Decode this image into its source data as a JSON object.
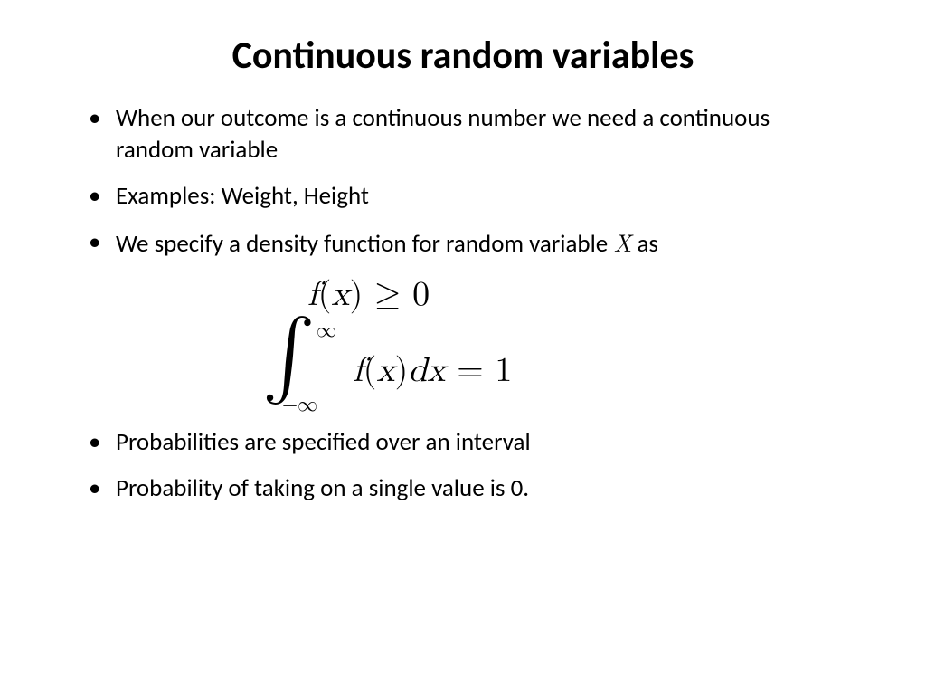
{
  "title": "Continuous random variables",
  "bullets": {
    "b1": "When our outcome is a continuous number we need a continuous random variable",
    "b2": "Examples: Weight, Height",
    "b3_pre": "We specify a density function for random variable ",
    "b3_var": "X",
    "b3_post": " as",
    "b4": "Probabilities are specified over an interval",
    "b5": "Probability of taking on a single value is 0."
  },
  "math": {
    "eq1_f": "f",
    "eq1_lpar": "(",
    "eq1_x": "x",
    "eq1_rpar": ")",
    "eq1_geq": " ≥ ",
    "eq1_zero": "0",
    "integral": "∫",
    "inf": "∞",
    "neginf": "−∞",
    "integrand_f": "f",
    "integrand_lpar": "(",
    "integrand_x": "x",
    "integrand_rpar": ")",
    "integrand_d": "d",
    "integrand_x2": "x",
    "eq2_eq": " = ",
    "eq2_one": "1"
  },
  "style": {
    "background": "#ffffff",
    "text_color": "#000000",
    "title_fontsize": 42,
    "bullet_fontsize": 27,
    "math_fontsize": 38,
    "integral_fontsize": 88,
    "limits_fontsize": 22
  }
}
